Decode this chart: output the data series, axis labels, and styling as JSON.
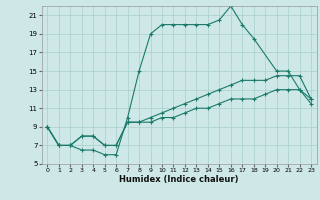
{
  "xlabel": "Humidex (Indice chaleur)",
  "bg_color": "#cde8e6",
  "grid_color": "#aacfcc",
  "line_color": "#1a7a6a",
  "xlim": [
    -0.5,
    23.5
  ],
  "ylim": [
    5,
    22
  ],
  "yticks": [
    5,
    7,
    9,
    11,
    13,
    15,
    17,
    19,
    21
  ],
  "xticks": [
    0,
    1,
    2,
    3,
    4,
    5,
    6,
    7,
    8,
    9,
    10,
    11,
    12,
    13,
    14,
    15,
    16,
    17,
    18,
    19,
    20,
    21,
    22,
    23
  ],
  "line1_x": [
    0,
    1,
    2,
    3,
    4,
    5,
    6,
    7,
    8,
    9,
    10,
    11,
    12,
    13,
    14,
    15,
    16,
    17,
    18,
    20,
    21,
    22,
    23
  ],
  "line1_y": [
    9,
    7,
    7,
    6.5,
    6.5,
    6,
    6,
    10,
    15,
    19,
    20,
    20,
    20,
    20,
    20,
    20.5,
    22,
    20,
    18.5,
    15,
    15,
    13,
    12
  ],
  "line2_x": [
    0,
    1,
    2,
    3,
    4,
    5,
    6,
    7,
    8,
    9,
    10,
    11,
    12,
    13,
    14,
    15,
    16,
    17,
    18,
    19,
    20,
    21,
    22,
    23
  ],
  "line2_y": [
    9,
    7,
    7,
    8,
    8,
    7,
    7,
    9.5,
    9.5,
    10,
    10.5,
    11,
    11.5,
    12,
    12.5,
    13,
    13.5,
    14,
    14,
    14,
    14.5,
    14.5,
    14.5,
    12
  ],
  "line3_x": [
    0,
    1,
    2,
    3,
    4,
    5,
    6,
    7,
    8,
    9,
    10,
    11,
    12,
    13,
    14,
    15,
    16,
    17,
    18,
    19,
    20,
    21,
    22,
    23
  ],
  "line3_y": [
    9,
    7,
    7,
    8,
    8,
    7,
    7,
    9.5,
    9.5,
    9.5,
    10,
    10,
    10.5,
    11,
    11,
    11.5,
    12,
    12,
    12,
    12.5,
    13,
    13,
    13,
    11.5
  ]
}
